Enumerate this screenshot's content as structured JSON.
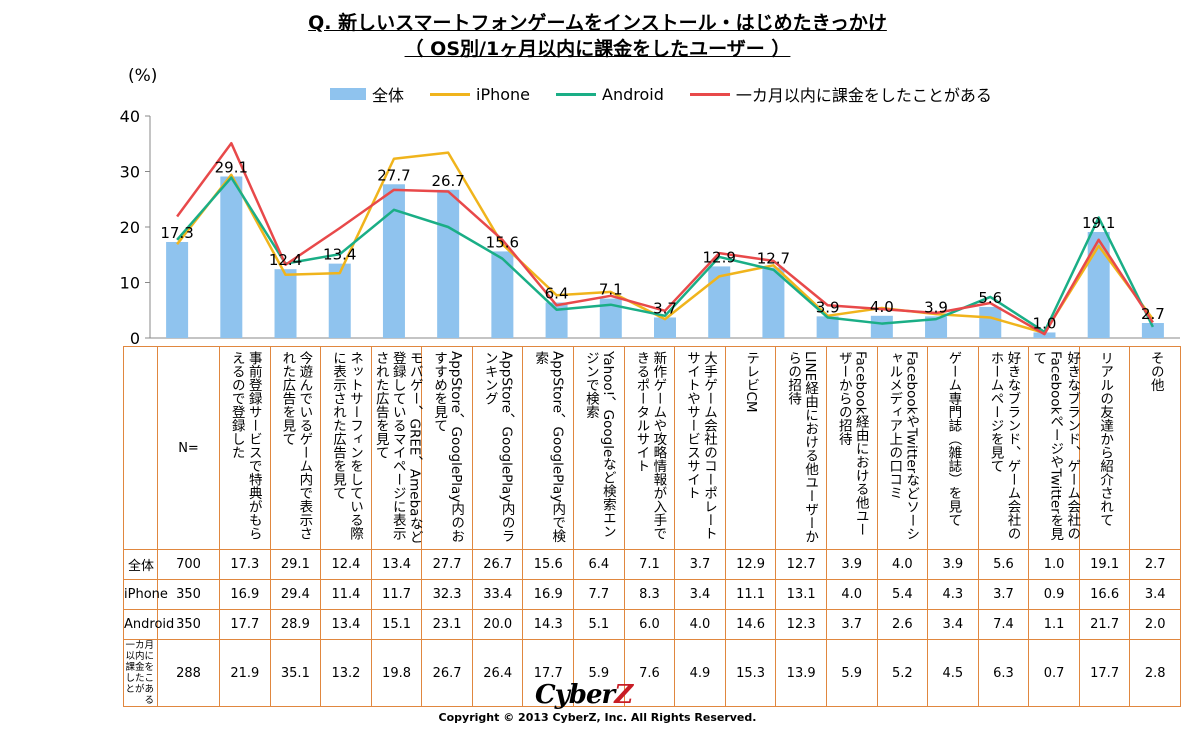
{
  "header": {
    "title_line1": "Q.  新しいスマートフォンゲームをインストール・はじめたきっかけ",
    "title_line2": "（ OS別/1ヶ月以内に課金をしたユーザー ）",
    "unit": "(%)"
  },
  "colors": {
    "bar": "#8fc3ee",
    "iphone": "#f0b41c",
    "android": "#1aae86",
    "paid": "#e8494a",
    "border": "#e0873f"
  },
  "chart_data": {
    "type": "bar",
    "title": "Q.  新しいスマートフォンゲームをインストール・はじめたきっかけ （ OS別/1ヶ月以内に課金をしたユーザー ）",
    "ylabel": "(%)",
    "ylim": [
      0,
      40
    ],
    "yticks": [
      0,
      10,
      20,
      30,
      40
    ],
    "categories": [
      "事前登録サービスで特典がもらえるので登録した",
      "今遊んでいるゲーム内で表示された広告を見て",
      "ネットサーフィンをしている際に表示された広告を見て",
      "モバゲー、GREE、Amebaなど登録しているマイページに表示された広告を見て",
      "AppStore、GooglePlay内のおすすめを見て",
      "AppStore、GooglePlay内のランキング",
      "AppStore、GooglePlay内で検索",
      "Yahoo!、Googleなど検索エンジンで検索",
      "新作ゲームや攻略情報が入手できるポータルサイト",
      "大手ゲーム会社のコーポレートサイトやサービスサイト",
      "テレビCM",
      "LINE経由における他ユーザーからの招待",
      "Facebook経由における他ユーザーからの招待",
      "FacebookやTwitterなどソーシャルメディア上の口コミ",
      "ゲーム専門誌（雑誌）を見て",
      "好きなブランド、ゲーム会社のホームページを見て",
      "好きなブランド、ゲーム会社のFacebookページやTwitterを見て",
      "リアルの友達から紹介されて",
      "その他"
    ],
    "series": [
      {
        "name": "全体",
        "n": "700",
        "type": "bar",
        "values": [
          17.3,
          29.1,
          12.4,
          13.4,
          27.7,
          26.7,
          15.6,
          6.4,
          7.1,
          3.7,
          12.9,
          12.7,
          3.9,
          4.0,
          3.9,
          5.6,
          1.0,
          19.1,
          2.7
        ]
      },
      {
        "name": "iPhone",
        "n": "350",
        "type": "line",
        "values": [
          16.9,
          29.4,
          11.4,
          11.7,
          32.3,
          33.4,
          16.9,
          7.7,
          8.3,
          3.4,
          11.1,
          13.1,
          4.0,
          5.4,
          4.3,
          3.7,
          0.9,
          16.6,
          3.4
        ]
      },
      {
        "name": "Android",
        "n": "350",
        "type": "line",
        "values": [
          17.7,
          28.9,
          13.4,
          15.1,
          23.1,
          20.0,
          14.3,
          5.1,
          6.0,
          4.0,
          14.6,
          12.3,
          3.7,
          2.6,
          3.4,
          7.4,
          1.1,
          21.7,
          2.0
        ]
      },
      {
        "name": "一カ月以内に課金をしたことがある",
        "n": "288",
        "type": "line",
        "values": [
          21.9,
          35.1,
          13.2,
          19.8,
          26.7,
          26.4,
          17.7,
          5.9,
          7.6,
          4.9,
          15.3,
          13.9,
          5.9,
          5.2,
          4.5,
          6.3,
          0.7,
          17.7,
          2.8
        ]
      }
    ]
  },
  "table": {
    "n_header": "N=",
    "categories_display": [
      "事前登録サービスで特典がもらえるので登録した",
      "今遊んでいるゲーム内で表示された広告を見て",
      "ネットサーフィンをしている際に表示された広告を見て",
      "モバゲー、GREE、Amebaなど登録しているマイページに表示された広告を見て",
      "AppStore、GooglePlay内のおすすめを見て",
      "AppStore、GooglePlay内のランキング",
      "AppStore、GooglePlay内で検索",
      "Yahoo!、Googleなど検索エンジンで検索",
      "新作ゲームや攻略情報が入手できるポータルサイト",
      "大手ゲーム会社のコーポレートサイトやサービスサイト",
      "テレビCM",
      "LINE経由における他ユーザーからの招待",
      "Facebook経由における他ユーザーからの招待",
      "FacebookやTwitterなどソーシャルメディア上の口コミ",
      "ゲーム専門誌（雑誌）を見て",
      "好きなブランド、ゲーム会社のホームページを見て",
      "好きなブランド、ゲーム会社のFacebookページやTwitterを見て",
      "リアルの友達から紹介されて",
      "その他"
    ],
    "rows": [
      {
        "label": "全体",
        "n": "700",
        "values": [
          "17.3",
          "29.1",
          "12.4",
          "13.4",
          "27.7",
          "26.7",
          "15.6",
          "6.4",
          "7.1",
          "3.7",
          "12.9",
          "12.7",
          "3.9",
          "4.0",
          "3.9",
          "5.6",
          "1.0",
          "19.1",
          "2.7"
        ]
      },
      {
        "label": "iPhone",
        "n": "350",
        "values": [
          "16.9",
          "29.4",
          "11.4",
          "11.7",
          "32.3",
          "33.4",
          "16.9",
          "7.7",
          "8.3",
          "3.4",
          "11.1",
          "13.1",
          "4.0",
          "5.4",
          "4.3",
          "3.7",
          "0.9",
          "16.6",
          "3.4"
        ]
      },
      {
        "label": "Android",
        "n": "350",
        "values": [
          "17.7",
          "28.9",
          "13.4",
          "15.1",
          "23.1",
          "20.0",
          "14.3",
          "5.1",
          "6.0",
          "4.0",
          "14.6",
          "12.3",
          "3.7",
          "2.6",
          "3.4",
          "7.4",
          "1.1",
          "21.7",
          "2.0"
        ]
      },
      {
        "label": "一カ月以内に課金をしたことがある",
        "n": "288",
        "values": [
          "21.9",
          "35.1",
          "13.2",
          "19.8",
          "26.7",
          "26.4",
          "17.7",
          "5.9",
          "7.6",
          "4.9",
          "15.3",
          "13.9",
          "5.9",
          "5.2",
          "4.5",
          "6.3",
          "0.7",
          "17.7",
          "2.8"
        ]
      }
    ]
  },
  "footer": {
    "logo_prefix": "Cyber",
    "logo_suffix": "Z",
    "copyright": "Copyright © 2013 CyberZ, Inc.  All Rights Reserved."
  }
}
